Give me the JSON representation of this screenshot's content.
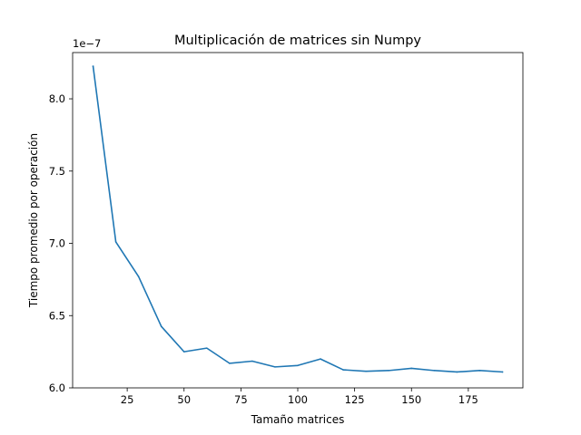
{
  "chart_data": {
    "type": "line",
    "title": "Multiplicación de matrices sin Numpy",
    "xlabel": "Tamaño matrices",
    "ylabel": "Tiempo promedio por operación",
    "y_offset_label": "1e−7",
    "xlim": [
      1,
      199
    ],
    "ylim": [
      6.0,
      8.32
    ],
    "x_ticks": [
      25,
      50,
      75,
      100,
      125,
      150,
      175
    ],
    "x_tick_labels": [
      "25",
      "50",
      "75",
      "100",
      "125",
      "150",
      "175"
    ],
    "y_ticks": [
      6.0,
      6.5,
      7.0,
      7.5,
      8.0
    ],
    "y_tick_labels": [
      "6.0",
      "6.5",
      "7.0",
      "7.5",
      "8.0"
    ],
    "grid": false,
    "series": [
      {
        "color": "#1f77b4",
        "x": [
          10,
          20,
          30,
          40,
          50,
          60,
          70,
          80,
          90,
          100,
          110,
          120,
          130,
          140,
          150,
          160,
          170,
          180,
          190
        ],
        "y": [
          8.225,
          7.01,
          6.77,
          6.425,
          6.25,
          6.275,
          6.17,
          6.185,
          6.145,
          6.155,
          6.2,
          6.125,
          6.115,
          6.12,
          6.135,
          6.12,
          6.11,
          6.12,
          6.11
        ]
      }
    ]
  }
}
